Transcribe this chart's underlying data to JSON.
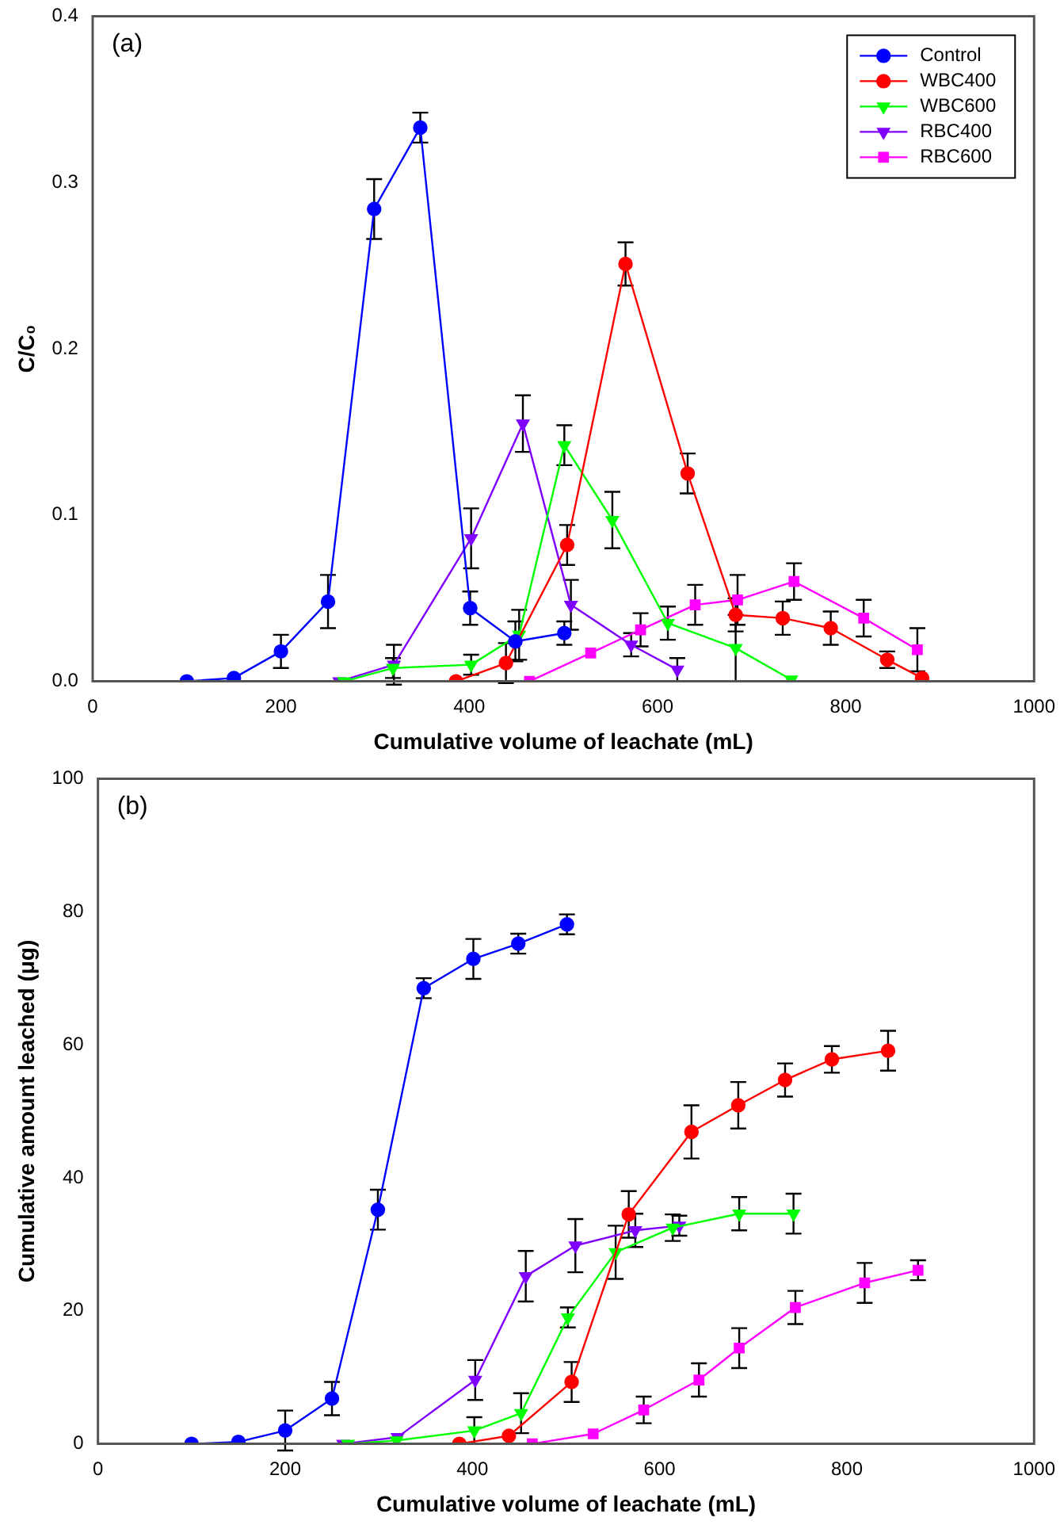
{
  "chart_data": [
    {
      "type": "line",
      "annotations": [
        "(a)"
      ],
      "xlabel": "Cumulative volume of leachate (mL)",
      "ylabel": "C/C₀",
      "xlim": [
        0,
        1000
      ],
      "ylim": [
        0,
        0.4
      ],
      "xticks": [
        0,
        200,
        400,
        600,
        800,
        1000
      ],
      "yticks": [
        {
          "value": 0,
          "label": "0.0"
        },
        0.1,
        0.2,
        0.3,
        0.4
      ],
      "legend": "top right",
      "grid": false,
      "series": [
        {
          "name": "Control",
          "color": "#0000ff",
          "marker": "circle",
          "x": [
            100,
            150,
            200,
            250,
            299,
            348,
            401,
            449,
            501
          ],
          "values": [
            0,
            0.002,
            0.018,
            0.048,
            0.284,
            0.333,
            0.044,
            0.024,
            0.029
          ],
          "errors": [
            null,
            null,
            0.01,
            0.016,
            0.018,
            0.009,
            0.01,
            0.012,
            0.007
          ]
        },
        {
          "name": "WBC400",
          "color": "#ff0000",
          "marker": "circle",
          "x": [
            386,
            439,
            504,
            566,
            632,
            683,
            733,
            784,
            844,
            881
          ],
          "values": [
            0,
            0.011,
            0.082,
            0.251,
            0.125,
            0.04,
            0.038,
            0.032,
            0.013,
            0.002
          ],
          "errors": [
            null,
            0.012,
            0.012,
            0.013,
            0.012,
            0.01,
            0.01,
            0.01,
            0.005,
            null
          ]
        },
        {
          "name": "WBC600",
          "color": "#00ff00",
          "marker": "triangle-down",
          "x": [
            267,
            319,
            402,
            453,
            501,
            552,
            611,
            683,
            742
          ],
          "values": [
            0,
            0.008,
            0.01,
            0.028,
            0.142,
            0.097,
            0.035,
            0.02,
            0.001
          ],
          "errors": [
            null,
            0.006,
            0.006,
            0.015,
            0.012,
            0.017,
            0.01,
            0.02,
            null
          ]
        },
        {
          "name": "RBC400",
          "color": "#8000ff",
          "marker": "triangle-down",
          "x": [
            262,
            320,
            402,
            457,
            508,
            572,
            621
          ],
          "values": [
            0,
            0.01,
            0.086,
            0.155,
            0.046,
            0.022,
            0.007
          ],
          "errors": [
            null,
            0.012,
            0.018,
            0.017,
            0.015,
            0.007,
            0.007
          ]
        },
        {
          "name": "RBC600",
          "color": "#ff00ff",
          "marker": "square",
          "x": [
            464,
            529,
            582,
            640,
            685,
            745,
            819,
            876
          ],
          "values": [
            0,
            0.017,
            0.031,
            0.046,
            0.049,
            0.06,
            0.038,
            0.019
          ],
          "errors": [
            null,
            null,
            0.01,
            0.012,
            0.015,
            0.011,
            0.011,
            0.013
          ]
        }
      ]
    },
    {
      "type": "line",
      "annotations": [
        "(b)"
      ],
      "xlabel": "Cumulative volume of leachate (mL)",
      "ylabel": "Cumulative amount leached (μg)",
      "xlim": [
        0,
        1000
      ],
      "ylim": [
        0,
        100
      ],
      "xticks": [
        0,
        200,
        400,
        600,
        800,
        1000
      ],
      "yticks": [
        0,
        20,
        40,
        60,
        80,
        100
      ],
      "grid": false,
      "series": [
        {
          "color": "#0000ff",
          "marker": "circle",
          "x": [
            100,
            150,
            200,
            250,
            299,
            348,
            401,
            449,
            501
          ],
          "values": [
            0,
            0.3,
            2,
            6.8,
            35.2,
            68.5,
            72.9,
            75.2,
            78.1
          ],
          "errors": [
            null,
            null,
            3,
            2.5,
            3,
            1.5,
            3,
            1.5,
            1.5
          ]
        },
        {
          "color": "#ff0000",
          "marker": "circle",
          "x": [
            386,
            439,
            506,
            567,
            634,
            684,
            734,
            784,
            844
          ],
          "values": [
            0,
            1.2,
            9.3,
            34.5,
            46.9,
            50.9,
            54.7,
            57.8,
            59.1
          ],
          "errors": [
            null,
            null,
            3,
            3.5,
            4,
            3.5,
            2.5,
            2,
            3
          ]
        },
        {
          "color": "#00ff00",
          "marker": "triangle-down",
          "x": [
            267,
            319,
            402,
            452,
            502,
            553,
            614,
            685,
            743
          ],
          "values": [
            0,
            0.5,
            2,
            4.6,
            19,
            28.8,
            32.5,
            34.6,
            34.6
          ],
          "errors": [
            null,
            null,
            2,
            3,
            1.5,
            4,
            2,
            2.5,
            3
          ]
        },
        {
          "color": "#8000ff",
          "marker": "triangle-down",
          "x": [
            262,
            320,
            403,
            457,
            510,
            574,
            621
          ],
          "values": [
            0,
            1,
            9.6,
            25.2,
            29.8,
            32.1,
            32.8
          ],
          "errors": [
            null,
            null,
            3,
            3.8,
            4,
            2.5,
            1.5
          ]
        },
        {
          "color": "#ff00ff",
          "marker": "square",
          "x": [
            464,
            529,
            583,
            642,
            685,
            745,
            819,
            876
          ],
          "values": [
            0,
            1.5,
            5.1,
            9.6,
            14.4,
            20.5,
            24.2,
            26.1
          ],
          "errors": [
            null,
            null,
            2,
            2.5,
            3,
            2.5,
            3,
            1.5
          ]
        }
      ]
    }
  ]
}
